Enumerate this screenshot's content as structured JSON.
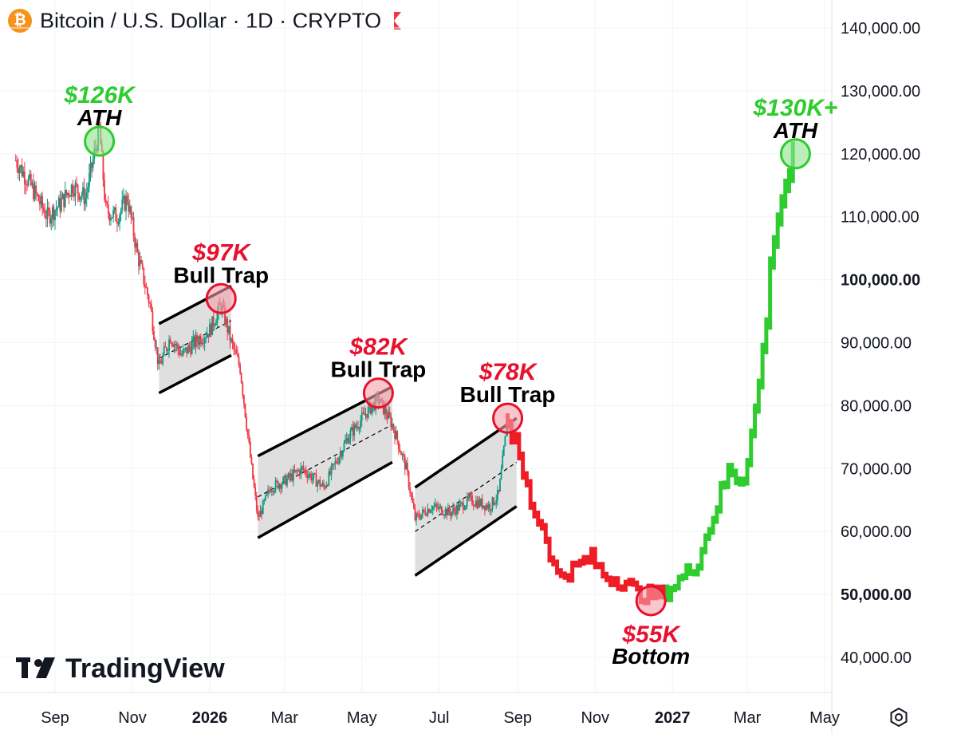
{
  "header": {
    "title": "Bitcoin / U.S. Dollar · 1D · CRYPTO",
    "coin_symbol": "₿",
    "coin_color": "#f7931a",
    "flag_color": "#f23645"
  },
  "watermark": {
    "brand": "TradingView"
  },
  "colors": {
    "up_candle": "#089981",
    "down_candle": "#f23645",
    "projection_bear": "#ee1c25",
    "projection_bull": "#2ecc2e",
    "channel_fill": "#d9d9d9",
    "callout_green": "#2ecc2e",
    "callout_red": "#e8112d"
  },
  "chart_data": {
    "type": "candlestick",
    "title": "Bitcoin / U.S. Dollar · 1D · CRYPTO",
    "y_axis": {
      "position": "right",
      "range": [
        35000,
        145000
      ],
      "ticks": [
        "40,000.00",
        "50,000.00",
        "60,000.00",
        "70,000.00",
        "80,000.00",
        "90,000.00",
        "100,000.00",
        "110,000.00",
        "120,000.00",
        "130,000.00",
        "140,000.00"
      ],
      "tick_values": [
        40000,
        50000,
        60000,
        70000,
        80000,
        90000,
        100000,
        110000,
        120000,
        130000,
        140000
      ],
      "bold_ticks": [
        "50,000.00",
        "100,000.00"
      ]
    },
    "x_axis": {
      "range": [
        "2025-08-01",
        "2027-05-31"
      ],
      "ticks": [
        {
          "label": "Sep",
          "date": "2025-09-01",
          "bold": false
        },
        {
          "label": "Nov",
          "date": "2025-11-01",
          "bold": false
        },
        {
          "label": "2026",
          "date": "2026-01-01",
          "bold": true
        },
        {
          "label": "Mar",
          "date": "2026-03-01",
          "bold": false
        },
        {
          "label": "May",
          "date": "2026-05-01",
          "bold": false
        },
        {
          "label": "Jul",
          "date": "2026-07-01",
          "bold": false
        },
        {
          "label": "Sep",
          "date": "2026-09-01",
          "bold": false
        },
        {
          "label": "Nov",
          "date": "2026-11-01",
          "bold": false
        },
        {
          "label": "2027",
          "date": "2027-01-01",
          "bold": true
        },
        {
          "label": "Mar",
          "date": "2027-03-01",
          "bold": false
        },
        {
          "label": "May",
          "date": "2027-05-01",
          "bold": false
        }
      ]
    },
    "grid": true,
    "price_path": [
      {
        "date": "2025-08-01",
        "close": 119000
      },
      {
        "date": "2025-08-10",
        "close": 116000
      },
      {
        "date": "2025-08-18",
        "close": 113000
      },
      {
        "date": "2025-08-26",
        "close": 110000
      },
      {
        "date": "2025-09-05",
        "close": 112000
      },
      {
        "date": "2025-09-15",
        "close": 115000
      },
      {
        "date": "2025-09-25",
        "close": 113000
      },
      {
        "date": "2025-10-06",
        "close": 124000
      },
      {
        "date": "2025-10-11",
        "close": 111000
      },
      {
        "date": "2025-10-20",
        "close": 110000
      },
      {
        "date": "2025-10-28",
        "close": 113000
      },
      {
        "date": "2025-11-05",
        "close": 104000
      },
      {
        "date": "2025-11-15",
        "close": 96000
      },
      {
        "date": "2025-11-22",
        "close": 86000
      },
      {
        "date": "2025-12-01",
        "close": 91000
      },
      {
        "date": "2025-12-10",
        "close": 88000
      },
      {
        "date": "2025-12-20",
        "close": 90000
      },
      {
        "date": "2026-01-01",
        "close": 92000
      },
      {
        "date": "2026-01-10",
        "close": 96000
      },
      {
        "date": "2026-01-18",
        "close": 90000
      },
      {
        "date": "2026-01-25",
        "close": 86000
      },
      {
        "date": "2026-02-03",
        "close": 70000
      },
      {
        "date": "2026-02-08",
        "close": 62000
      },
      {
        "date": "2026-02-18",
        "close": 67000
      },
      {
        "date": "2026-03-01",
        "close": 68000
      },
      {
        "date": "2026-03-15",
        "close": 70000
      },
      {
        "date": "2026-04-01",
        "close": 67000
      },
      {
        "date": "2026-04-20",
        "close": 75000
      },
      {
        "date": "2026-05-05",
        "close": 79000
      },
      {
        "date": "2026-05-14",
        "close": 81000
      },
      {
        "date": "2026-05-25",
        "close": 77000
      },
      {
        "date": "2026-06-05",
        "close": 70000
      },
      {
        "date": "2026-06-12",
        "close": 62000
      },
      {
        "date": "2026-06-25",
        "close": 64000
      },
      {
        "date": "2026-07-10",
        "close": 63000
      },
      {
        "date": "2026-07-25",
        "close": 65000
      },
      {
        "date": "2026-08-10",
        "close": 64000
      },
      {
        "date": "2026-08-17",
        "close": 66000
      },
      {
        "date": "2026-08-24",
        "close": 78000
      }
    ],
    "projection": [
      {
        "date": "2026-08-24",
        "close": 78000
      },
      {
        "date": "2026-09-01",
        "close": 72000
      },
      {
        "date": "2026-09-12",
        "close": 64000
      },
      {
        "date": "2026-09-22",
        "close": 60000
      },
      {
        "date": "2026-10-01",
        "close": 53000
      },
      {
        "date": "2026-10-15",
        "close": 54000
      },
      {
        "date": "2026-10-28",
        "close": 56000
      },
      {
        "date": "2026-11-08",
        "close": 53000
      },
      {
        "date": "2026-11-25",
        "close": 52000
      },
      {
        "date": "2026-12-05",
        "close": 50000
      },
      {
        "date": "2026-12-15",
        "close": 50000
      },
      {
        "date": "2026-12-25",
        "close": 50000
      },
      {
        "date": "2027-01-05",
        "close": 52000
      },
      {
        "date": "2027-01-20",
        "close": 55000
      },
      {
        "date": "2027-02-01",
        "close": 62000
      },
      {
        "date": "2027-02-15",
        "close": 70000
      },
      {
        "date": "2027-02-25",
        "close": 68000
      },
      {
        "date": "2027-03-08",
        "close": 80000
      },
      {
        "date": "2027-03-15",
        "close": 92000
      },
      {
        "date": "2027-03-22",
        "close": 108000
      },
      {
        "date": "2027-04-01",
        "close": 116000
      },
      {
        "date": "2027-04-08",
        "close": 120000
      }
    ],
    "channels": [
      {
        "start": "2025-11-22",
        "end": "2026-01-18",
        "lower": [
          82000,
          88000
        ],
        "upper": [
          93000,
          99000
        ]
      },
      {
        "start": "2026-02-08",
        "end": "2026-05-25",
        "lower": [
          59000,
          71000
        ],
        "upper": [
          72000,
          83000
        ]
      },
      {
        "start": "2026-06-12",
        "end": "2026-08-31",
        "lower": [
          53000,
          64000
        ],
        "upper": [
          67000,
          78000
        ]
      }
    ],
    "markers": [
      {
        "date": "2025-10-06",
        "price": 122000,
        "kind": "green",
        "price_label": "$126K",
        "label": "ATH",
        "label_pos": "above"
      },
      {
        "date": "2026-01-10",
        "price": 97000,
        "kind": "red",
        "price_label": "$97K",
        "label": "Bull Trap",
        "label_pos": "above"
      },
      {
        "date": "2026-05-14",
        "price": 82000,
        "kind": "red",
        "price_label": "$82K",
        "label": "Bull Trap",
        "label_pos": "above"
      },
      {
        "date": "2026-08-24",
        "price": 78000,
        "kind": "red",
        "price_label": "$78K",
        "label": "Bull Trap",
        "label_pos": "above"
      },
      {
        "date": "2026-12-15",
        "price": 49000,
        "kind": "red",
        "price_label": "$55K",
        "label": "Bottom",
        "label_pos": "below"
      },
      {
        "date": "2027-04-08",
        "price": 120000,
        "kind": "green",
        "price_label": "$130K+",
        "label": "ATH",
        "label_pos": "above"
      }
    ]
  }
}
